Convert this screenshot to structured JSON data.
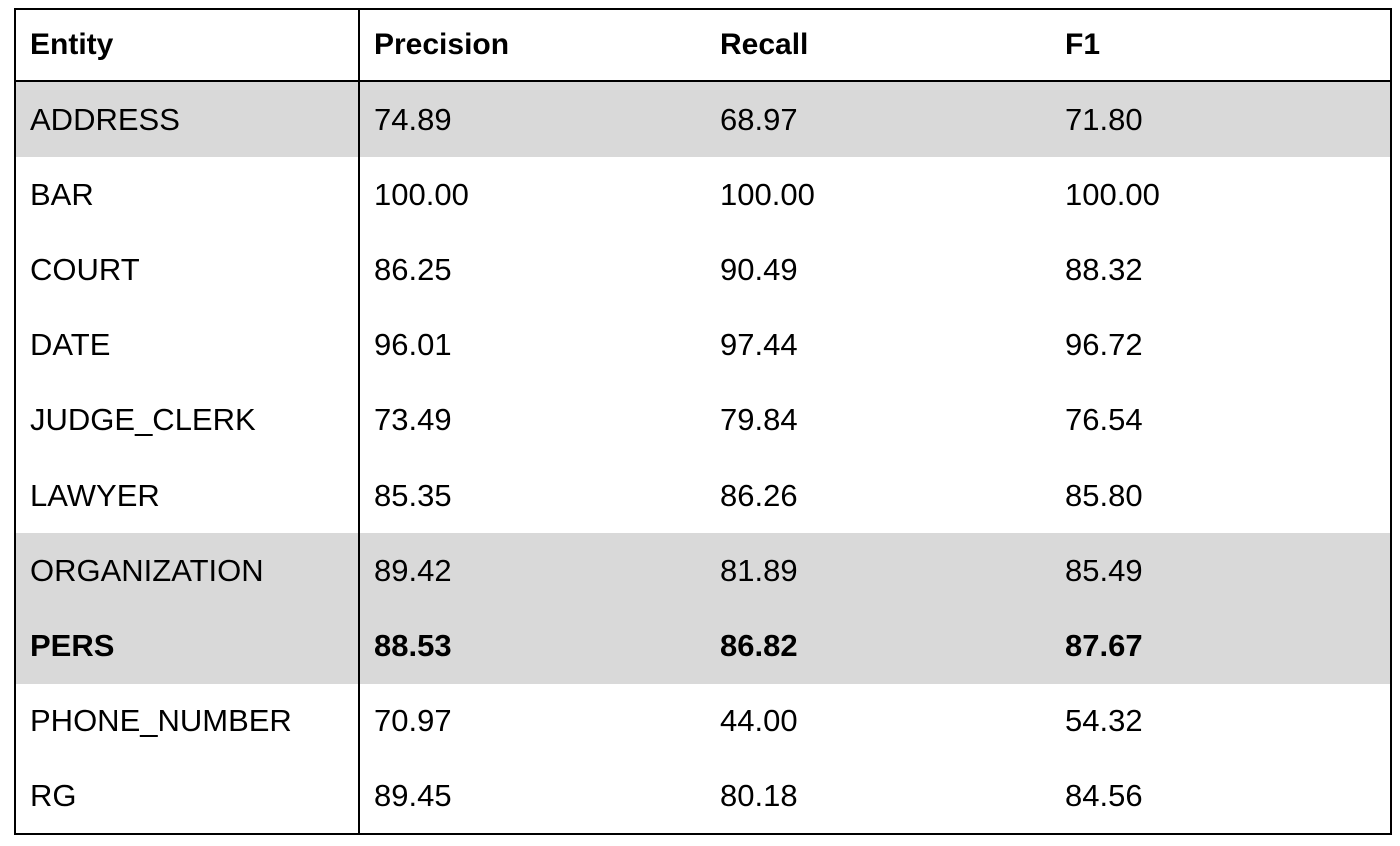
{
  "chart_data": {
    "type": "table",
    "columns": [
      "Entity",
      "Precision",
      "Recall",
      "F1"
    ],
    "rows": [
      {
        "cells": [
          "ADDRESS",
          "74.89",
          "68.97",
          "71.80"
        ],
        "highlight": true,
        "bold": false
      },
      {
        "cells": [
          "BAR",
          "100.00",
          "100.00",
          "100.00"
        ],
        "highlight": false,
        "bold": false
      },
      {
        "cells": [
          "COURT",
          "86.25",
          "90.49",
          "88.32"
        ],
        "highlight": false,
        "bold": false
      },
      {
        "cells": [
          "DATE",
          "96.01",
          "97.44",
          "96.72"
        ],
        "highlight": false,
        "bold": false
      },
      {
        "cells": [
          "JUDGE_CLERK",
          "73.49",
          "79.84",
          "76.54"
        ],
        "highlight": false,
        "bold": false
      },
      {
        "cells": [
          "LAWYER",
          "85.35",
          "86.26",
          "85.80"
        ],
        "highlight": false,
        "bold": false
      },
      {
        "cells": [
          "ORGANIZATION",
          "89.42",
          "81.89",
          "85.49"
        ],
        "highlight": true,
        "bold": false
      },
      {
        "cells": [
          "PERS",
          "88.53",
          "86.82",
          "87.67"
        ],
        "highlight": true,
        "bold": true
      },
      {
        "cells": [
          "PHONE_NUMBER",
          "70.97",
          "44.00",
          "54.32"
        ],
        "highlight": false,
        "bold": false
      },
      {
        "cells": [
          "RG",
          "89.45",
          "80.18",
          "84.56"
        ],
        "highlight": false,
        "bold": false
      }
    ],
    "highlight_color": "#d9d9d9"
  }
}
